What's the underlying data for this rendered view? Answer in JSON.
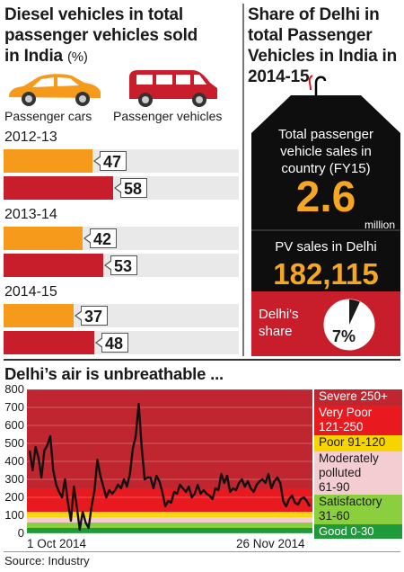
{
  "left_panel": {
    "title_line1": "Diesel vehicles in total",
    "title_line2": "passenger vehicles sold",
    "title_line3": "in India",
    "title_unit": "(%)",
    "legend": {
      "cars_label": "Passenger cars",
      "vehicles_label": "Passenger vehicles",
      "cars_color": "#f59a1a",
      "vehicles_color": "#c81e2b"
    }
  },
  "right_panel": {
    "title_line1": "Share of Delhi in",
    "title_line2": "total Passenger",
    "title_line3": "Vehicles in India in",
    "title_line4": "2014-15",
    "total_label_line1": "Total passenger",
    "total_label_line2": "vehicle sales in",
    "total_label_line3": "country (FY15)",
    "total_value": "2.6",
    "total_unit": "million",
    "delhi_label": "PV sales in Delhi",
    "delhi_value": "182,115",
    "share_label_line1": "Delhi's",
    "share_label_line2": "share",
    "share_value": "7%",
    "share_fraction": 0.07
  },
  "air_chart": {
    "title": "Delhi’s air is unbreathable ...",
    "y_ticks": [
      "800",
      "700",
      "600",
      "500",
      "400",
      "300",
      "200",
      "100",
      "0"
    ],
    "x_start_label": "1 Oct 2014",
    "x_end_label": "26 Nov 2014",
    "bands": [
      {
        "label": "Severe 250+",
        "color": "#c0262f"
      },
      {
        "label": "Very Poor",
        "label2": "121-250",
        "color": "#e8191f"
      },
      {
        "label": "Poor 91-120",
        "color": "#f5d400"
      },
      {
        "label": "Moderately",
        "label2": "polluted",
        "label3": "61-90",
        "color": "#f3cdd1"
      },
      {
        "label": "Satisfactory",
        "label2": "31-60",
        "color": "#8ccf3e"
      },
      {
        "label": "Good 0-30",
        "color": "#1f9a3a"
      }
    ]
  },
  "source": "Source: Industry",
  "chart_data": [
    {
      "type": "bar",
      "title": "Diesel vehicles in total passenger vehicles sold in India (%)",
      "categories": [
        "2012-13",
        "2013-14",
        "2014-15"
      ],
      "series": [
        {
          "name": "Passenger cars",
          "values": [
            47,
            42,
            37
          ]
        },
        {
          "name": "Passenger vehicles",
          "values": [
            58,
            53,
            48
          ]
        }
      ]
    },
    {
      "type": "line",
      "title": "Delhi’s air is unbreathable ...",
      "ylim": [
        0,
        800
      ],
      "x_start": "1 Oct 2014",
      "x_end": "26 Nov 2014",
      "values": [
        460,
        350,
        480,
        420,
        310,
        460,
        490,
        540,
        350,
        270,
        230,
        200,
        300,
        170,
        70,
        260,
        150,
        20,
        120,
        60,
        30,
        150,
        240,
        410,
        320,
        260,
        200,
        240,
        220,
        240,
        270,
        250,
        300,
        260,
        330,
        470,
        540,
        720,
        480,
        300,
        310,
        310,
        250,
        320,
        290,
        230,
        150,
        180,
        170,
        230,
        220,
        270,
        250,
        230,
        260,
        200,
        220,
        270,
        220,
        240,
        220,
        210,
        190,
        250,
        240,
        330,
        280,
        320,
        230,
        250,
        240,
        280,
        300,
        260,
        290,
        250,
        230,
        270,
        290,
        300,
        280,
        330,
        250,
        290,
        310,
        280,
        180,
        150,
        190,
        210,
        170,
        160,
        190,
        200,
        180,
        150
      ]
    }
  ]
}
